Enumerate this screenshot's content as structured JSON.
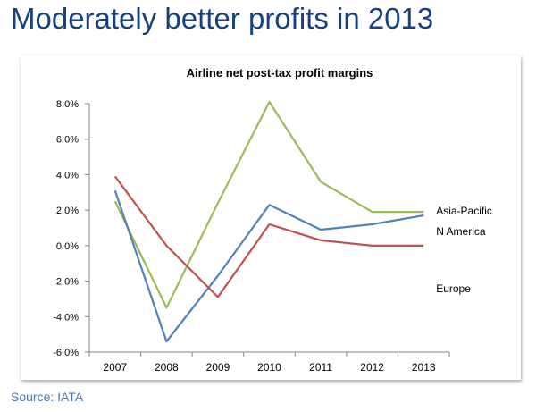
{
  "slide": {
    "title": "Moderately better profits in 2013",
    "source": "Source: IATA"
  },
  "colors": {
    "title": "#17407e",
    "source": "#4a7ab8",
    "asia_pacific": "#9bbb59",
    "n_america": "#4f81bd",
    "europe": "#c0504d"
  },
  "chart_data": {
    "type": "line",
    "title": "Airline net post-tax profit margins",
    "xlabel": "",
    "ylabel": "",
    "categories": [
      "2007",
      "2008",
      "2009",
      "2010",
      "2011",
      "2012",
      "2013"
    ],
    "ylim": [
      -6,
      8
    ],
    "yticks": [
      8,
      6,
      4,
      2,
      0,
      -2,
      -4,
      -6
    ],
    "ytick_labels": [
      "8.0%",
      "6.0%",
      "4.0%",
      "2.0%",
      "0.0%",
      "-2.0%",
      "-4.0%",
      "-6.0%"
    ],
    "grid": false,
    "legend": "end-of-line labels, right",
    "series": [
      {
        "name": "Asia-Pacific",
        "color": "#9bbb59",
        "values": [
          2.5,
          -3.5,
          2.4,
          8.1,
          3.6,
          1.9,
          1.9
        ]
      },
      {
        "name": "N America",
        "color": "#4f81bd",
        "values": [
          3.1,
          -5.4,
          -1.7,
          2.3,
          0.9,
          1.2,
          1.7
        ]
      },
      {
        "name": "Europe",
        "color": "#c0504d",
        "values": [
          3.9,
          0.0,
          -2.9,
          1.2,
          0.3,
          0.0,
          0.0
        ]
      }
    ]
  }
}
